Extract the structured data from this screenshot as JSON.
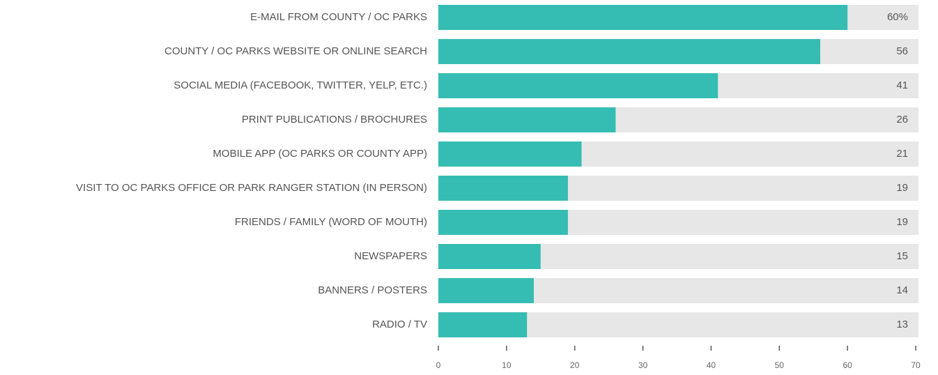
{
  "chart_data": {
    "type": "bar",
    "orientation": "horizontal",
    "categories": [
      "E-MAIL FROM COUNTY / OC PARKS",
      "COUNTY / OC PARKS WEBSITE OR ONLINE SEARCH",
      "SOCIAL MEDIA (FACEBOOK, TWITTER, YELP, ETC.)",
      "PRINT PUBLICATIONS / BROCHURES",
      "MOBILE APP (OC PARKS OR COUNTY APP)",
      "VISIT TO OC PARKS OFFICE OR PARK RANGER STATION (IN PERSON)",
      "FRIENDS / FAMILY (WORD OF MOUTH)",
      "NEWSPAPERS",
      "BANNERS / POSTERS",
      "RADIO / TV"
    ],
    "values": [
      60,
      56,
      41,
      26,
      21,
      19,
      19,
      15,
      14,
      13
    ],
    "value_labels": [
      "60%",
      "56",
      "41",
      "26",
      "21",
      "19",
      "19",
      "15",
      "14",
      "13"
    ],
    "color": "#36bdb3",
    "track_color": "#e6e7e6",
    "xlim": [
      0,
      70
    ],
    "xticks": [
      0,
      10,
      20,
      30,
      40,
      50,
      60,
      70
    ]
  }
}
